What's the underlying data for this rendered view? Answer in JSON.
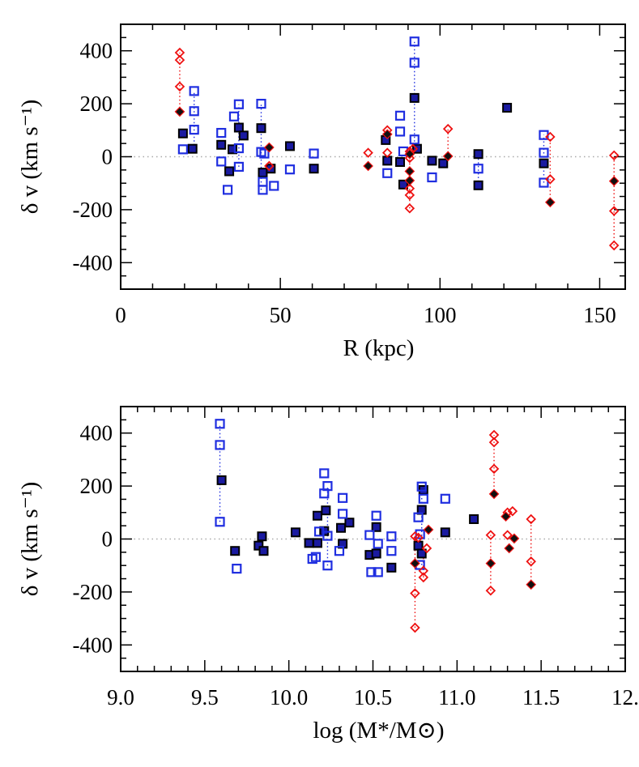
{
  "colors": {
    "filled_square": "#1a1aa0",
    "open_square": "#1f2ee0",
    "diamond_red": "#ee1111",
    "diamond_dark": "#111111",
    "zero_line": "#aaaaaa"
  },
  "chart_data": [
    {
      "type": "scatter",
      "xlabel": "R (kpc)",
      "ylabel": "δ v (km s⁻¹)",
      "xlim": [
        0,
        158
      ],
      "ylim": [
        -500,
        500
      ],
      "xticks": [
        "0",
        "50",
        "100",
        "150"
      ],
      "yticks": [
        "-400",
        "-200",
        "0",
        "200",
        "400"
      ],
      "grid": false,
      "zero_line": true,
      "series": [
        {
          "marker": "filled-square",
          "points": [
            [
              19.5,
              88
            ],
            [
              22.5,
              30
            ],
            [
              31.5,
              45
            ],
            [
              34,
              -55
            ],
            [
              35,
              28
            ],
            [
              37,
              110
            ],
            [
              38.5,
              80
            ],
            [
              44,
              108
            ],
            [
              44.5,
              -60
            ],
            [
              47,
              -45
            ],
            [
              53,
              40
            ],
            [
              60.5,
              -45
            ],
            [
              83,
              63
            ],
            [
              83.5,
              -15
            ],
            [
              87.5,
              -20
            ],
            [
              88.5,
              -105
            ],
            [
              92,
              222
            ],
            [
              92.8,
              30
            ],
            [
              97.5,
              -15
            ],
            [
              101,
              -25
            ],
            [
              112,
              10
            ],
            [
              112,
              -108
            ],
            [
              121,
              185
            ],
            [
              132.5,
              -25
            ]
          ]
        },
        {
          "marker": "open-square",
          "points": [
            [
              19.5,
              28
            ],
            [
              23,
              248
            ],
            [
              23,
              172
            ],
            [
              23,
              102
            ],
            [
              31.5,
              90
            ],
            [
              31.5,
              -18
            ],
            [
              33.5,
              -125
            ],
            [
              35.5,
              152
            ],
            [
              37,
              198
            ],
            [
              37,
              32
            ],
            [
              37,
              -38
            ],
            [
              44,
              200
            ],
            [
              44,
              18
            ],
            [
              44.5,
              -95
            ],
            [
              44.5,
              -125
            ],
            [
              45,
              12
            ],
            [
              48,
              -110
            ],
            [
              53,
              -48
            ],
            [
              60.5,
              12
            ],
            [
              83.5,
              -62
            ],
            [
              87.5,
              155
            ],
            [
              87.5,
              95
            ],
            [
              88.5,
              20
            ],
            [
              92,
              435
            ],
            [
              92,
              355
            ],
            [
              92,
              65
            ],
            [
              97.5,
              -78
            ],
            [
              112,
              -45
            ],
            [
              132.5,
              82
            ],
            [
              132.5,
              15
            ],
            [
              132.5,
              -98
            ]
          ]
        },
        {
          "marker": "open-diamond-red",
          "points": [
            [
              18.5,
              393
            ],
            [
              18.5,
              365
            ],
            [
              18.5,
              265
            ],
            [
              46.5,
              -35
            ],
            [
              77.5,
              15
            ],
            [
              83.5,
              100
            ],
            [
              83.5,
              15
            ],
            [
              90.5,
              20
            ],
            [
              90.5,
              -5
            ],
            [
              90.5,
              -120
            ],
            [
              90.5,
              -145
            ],
            [
              90.5,
              -195
            ],
            [
              91.5,
              30
            ],
            [
              102.5,
              105
            ],
            [
              134.5,
              75
            ],
            [
              134.5,
              -85
            ],
            [
              154.5,
              5
            ],
            [
              154.5,
              -205
            ],
            [
              154.5,
              -335
            ]
          ]
        },
        {
          "marker": "filled-diamond-dark",
          "points": [
            [
              18.5,
              170
            ],
            [
              46.5,
              35
            ],
            [
              77.5,
              -35
            ],
            [
              83.5,
              85
            ],
            [
              90.5,
              10
            ],
            [
              90.5,
              -55
            ],
            [
              90.5,
              -90
            ],
            [
              102.5,
              2
            ],
            [
              134.5,
              -172
            ],
            [
              154.5,
              -92
            ]
          ]
        }
      ],
      "connectors": [
        {
          "color": "red",
          "x": 18.5,
          "y1": 170,
          "y2": 393
        },
        {
          "color": "blue",
          "x": 23,
          "y1": 30,
          "y2": 248
        },
        {
          "color": "blue",
          "x": 37,
          "y1": -38,
          "y2": 198
        },
        {
          "color": "blue",
          "x": 44,
          "y1": -125,
          "y2": 200
        },
        {
          "color": "blue",
          "x": 92,
          "y1": 30,
          "y2": 435
        },
        {
          "color": "red",
          "x": 90.5,
          "y1": -195,
          "y2": 30
        },
        {
          "color": "red",
          "x": 102.5,
          "y1": 2,
          "y2": 105
        },
        {
          "color": "blue",
          "x": 112,
          "y1": -108,
          "y2": 10
        },
        {
          "color": "red",
          "x": 134.5,
          "y1": -172,
          "y2": 75
        },
        {
          "color": "blue",
          "x": 132.5,
          "y1": -98,
          "y2": 82
        },
        {
          "color": "red",
          "x": 154.5,
          "y1": -335,
          "y2": 5
        }
      ]
    },
    {
      "type": "scatter",
      "xlabel": "log (M*/M⊙)",
      "ylabel": "δ v (km s⁻¹)",
      "xlim": [
        9.0,
        12.0
      ],
      "ylim": [
        -500,
        500
      ],
      "xticks": [
        "9.0",
        "9.5",
        "10.0",
        "10.5",
        "11.0",
        "11.5",
        "12."
      ],
      "yticks": [
        "-400",
        "-200",
        "0",
        "200",
        "400"
      ],
      "grid": false,
      "zero_line": true,
      "series": [
        {
          "marker": "filled-square",
          "points": [
            [
              9.6,
              222
            ],
            [
              9.68,
              -45
            ],
            [
              9.82,
              -25
            ],
            [
              9.84,
              10
            ],
            [
              9.85,
              -45
            ],
            [
              10.04,
              25
            ],
            [
              10.12,
              -15
            ],
            [
              10.17,
              88
            ],
            [
              10.17,
              -15
            ],
            [
              10.21,
              30
            ],
            [
              10.22,
              108
            ],
            [
              10.31,
              42
            ],
            [
              10.32,
              -18
            ],
            [
              10.36,
              62
            ],
            [
              10.48,
              -60
            ],
            [
              10.52,
              -55
            ],
            [
              10.52,
              45
            ],
            [
              10.61,
              -108
            ],
            [
              10.77,
              -25
            ],
            [
              10.79,
              -55
            ],
            [
              10.79,
              110
            ],
            [
              10.8,
              185
            ],
            [
              10.93,
              25
            ],
            [
              11.1,
              75
            ]
          ]
        },
        {
          "marker": "open-square",
          "points": [
            [
              9.59,
              435
            ],
            [
              9.59,
              355
            ],
            [
              9.59,
              65
            ],
            [
              9.69,
              -112
            ],
            [
              10.14,
              -75
            ],
            [
              10.16,
              -68
            ],
            [
              10.18,
              28
            ],
            [
              10.21,
              248
            ],
            [
              10.21,
              172
            ],
            [
              10.23,
              200
            ],
            [
              10.23,
              12
            ],
            [
              10.23,
              -100
            ],
            [
              10.3,
              -45
            ],
            [
              10.32,
              155
            ],
            [
              10.32,
              95
            ],
            [
              10.48,
              15
            ],
            [
              10.49,
              -125
            ],
            [
              10.52,
              88
            ],
            [
              10.53,
              -125
            ],
            [
              10.53,
              -18
            ],
            [
              10.61,
              10
            ],
            [
              10.61,
              -45
            ],
            [
              10.77,
              82
            ],
            [
              10.78,
              18
            ],
            [
              10.78,
              -98
            ],
            [
              10.79,
              198
            ],
            [
              10.8,
              152
            ],
            [
              10.93,
              152
            ]
          ]
        },
        {
          "marker": "open-diamond-red",
          "points": [
            [
              10.75,
              10
            ],
            [
              10.75,
              -205
            ],
            [
              10.75,
              -335
            ],
            [
              10.77,
              5
            ],
            [
              10.8,
              -120
            ],
            [
              10.8,
              -145
            ],
            [
              10.82,
              -35
            ],
            [
              11.2,
              15
            ],
            [
              11.2,
              -195
            ],
            [
              11.22,
              393
            ],
            [
              11.22,
              365
            ],
            [
              11.22,
              265
            ],
            [
              11.3,
              100
            ],
            [
              11.3,
              15
            ],
            [
              11.33,
              105
            ],
            [
              11.44,
              75
            ],
            [
              11.44,
              -85
            ]
          ]
        },
        {
          "marker": "filled-diamond-dark",
          "points": [
            [
              10.75,
              -92
            ],
            [
              10.83,
              35
            ],
            [
              11.2,
              -92
            ],
            [
              11.22,
              170
            ],
            [
              11.29,
              85
            ],
            [
              11.31,
              -35
            ],
            [
              11.34,
              2
            ],
            [
              11.44,
              -172
            ]
          ]
        }
      ],
      "connectors": [
        {
          "color": "blue",
          "x": 9.59,
          "y1": 65,
          "y2": 435
        },
        {
          "color": "blue",
          "x": 10.23,
          "y1": -100,
          "y2": 200
        },
        {
          "color": "red",
          "x": 10.75,
          "y1": -335,
          "y2": 10
        },
        {
          "color": "red",
          "x": 10.8,
          "y1": -145,
          "y2": -35
        },
        {
          "color": "blue",
          "x": 10.79,
          "y1": -98,
          "y2": 198
        },
        {
          "color": "red",
          "x": 11.2,
          "y1": -195,
          "y2": 15
        },
        {
          "color": "red",
          "x": 11.22,
          "y1": 170,
          "y2": 393
        },
        {
          "color": "red",
          "x": 11.44,
          "y1": -172,
          "y2": 75
        }
      ]
    }
  ]
}
